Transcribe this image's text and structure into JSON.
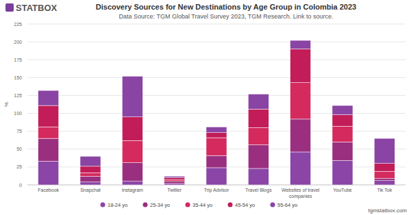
{
  "chart_data": {
    "type": "bar",
    "stacked": true,
    "grid": true,
    "legend": "bottom",
    "logo": "STATBOX",
    "title": "Discovery Sources for New Destinations by Age Group in Colombia 2023",
    "subtitle": "Data Source: TGM Global Travel Survey 2023, TGM Research. Link to source.",
    "ylabel": "%",
    "footer": "tgmstatbox.com",
    "categories": [
      "Facebook",
      "Snapchat",
      "Instagram",
      "Twitter",
      "Trip Advisor",
      "Travel Blogs",
      "Websites of travel companies",
      "YouTube",
      "Tik Tok"
    ],
    "series": [
      {
        "name": "18-24 yo",
        "color": "#8b45a6",
        "values": [
          33,
          4,
          5,
          2,
          24,
          23,
          46,
          34,
          6
        ]
      },
      {
        "name": "25-34 yo",
        "color": "#9a2f80",
        "values": [
          32,
          8,
          26,
          3,
          17,
          33,
          46,
          26,
          3
        ]
      },
      {
        "name": "35-44 yo",
        "color": "#d42a5e",
        "values": [
          16,
          5,
          31,
          2,
          25,
          24,
          51,
          22,
          10
        ]
      },
      {
        "name": "45-54 yo",
        "color": "#c21d58",
        "values": [
          30,
          9,
          33,
          3,
          7,
          26,
          47,
          16,
          11
        ]
      },
      {
        "name": "55-64 yo",
        "color": "#8a44a4",
        "values": [
          21,
          14,
          57,
          2,
          8,
          21,
          12,
          13,
          35
        ]
      }
    ],
    "ylim": [
      0,
      225
    ],
    "yticks": [
      0,
      25,
      50,
      75,
      100,
      125,
      150,
      175,
      200,
      225
    ]
  }
}
